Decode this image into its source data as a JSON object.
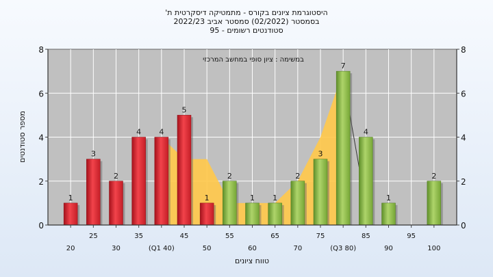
{
  "chart_data": {
    "type": "bar",
    "title_lines": [
      "היסטוגרמת ציונים בקורס - מתמטיקה דיסקרטית ת'",
      "בסמסטר  (02/2022)  סמסטר אביב 2022/23",
      "סטודנטים רשומים - 95"
    ],
    "annotation": "במשימה : ציון סופי במחשב המרכזי",
    "xlabel": "טווח ציונים",
    "ylabel": "מספר סטודנטים",
    "ylim": [
      0,
      8
    ],
    "yticks": [
      0,
      2,
      4,
      6,
      8
    ],
    "grid": true,
    "categories": [
      20,
      25,
      30,
      35,
      40,
      45,
      50,
      55,
      60,
      65,
      70,
      75,
      80,
      85,
      90,
      95,
      100
    ],
    "tick_labels": [
      "20",
      "25",
      "30",
      "35",
      "(Q1 40)",
      "45",
      "50",
      "55",
      "60",
      "65",
      "70",
      "75",
      "(Q3 80)",
      "85",
      "90",
      "95",
      "100"
    ],
    "values": [
      1,
      3,
      2,
      4,
      4,
      5,
      1,
      2,
      1,
      1,
      2,
      3,
      7,
      4,
      1,
      0,
      2
    ],
    "value_labels": [
      "1",
      "3",
      "2",
      "4",
      "4",
      "5",
      "1",
      "2",
      "1",
      "1",
      "2",
      "3",
      "7",
      "4",
      "1",
      "",
      "2"
    ],
    "bar_groups": [
      "red",
      "red",
      "red",
      "red",
      "red",
      "red",
      "red",
      "green",
      "green",
      "green",
      "green",
      "green",
      "green",
      "green",
      "green",
      "green",
      "green"
    ],
    "area_series": {
      "x": [
        40,
        45,
        50,
        55,
        60,
        65,
        70,
        75,
        80
      ],
      "values": [
        4,
        3,
        3,
        1,
        1,
        1,
        2,
        4,
        7
      ]
    },
    "colors": {
      "plot_bg": "#c0c0c0",
      "area": "#ffc94d",
      "red_bar": "#e8303a",
      "green_bar": "#8fc04a",
      "grid": "#ffffff"
    }
  }
}
